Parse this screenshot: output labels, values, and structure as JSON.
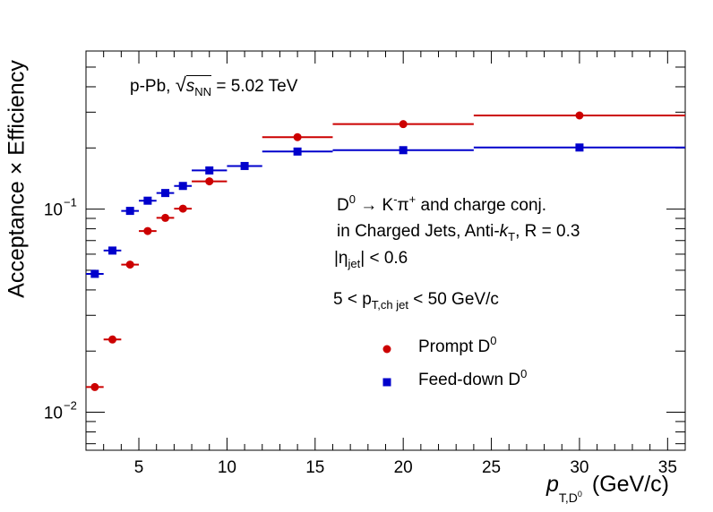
{
  "chart_data": {
    "type": "scatter",
    "title": "",
    "xlabel": "p",
    "xlabel_sub": "T,D",
    "xlabel_subsup": "0",
    "xlabel_unit": "(GeV/c)",
    "ylabel": "Acceptance × Efficiency",
    "xlim": [
      2,
      36
    ],
    "ylim": [
      0.0065,
      0.6
    ],
    "yscale": "log",
    "grid": false,
    "legend_position": "center-right",
    "x_ticks": [
      5,
      10,
      15,
      20,
      25,
      30,
      35
    ],
    "x_tick_labels": [
      "5",
      "10",
      "15",
      "20",
      "25",
      "30",
      "35"
    ],
    "y_ticks": [
      0.01,
      0.1
    ],
    "y_tick_labels": [
      {
        "base": "10",
        "exp": "−2"
      },
      {
        "base": "10",
        "exp": "−1"
      }
    ],
    "series": [
      {
        "name": "Prompt D",
        "name_sup": "0",
        "color": "#cc0000",
        "marker": "circle",
        "points": [
          {
            "x": 2.5,
            "xlow": 2,
            "xhigh": 3,
            "y": 0.0133
          },
          {
            "x": 3.5,
            "xlow": 3,
            "xhigh": 4,
            "y": 0.0228
          },
          {
            "x": 4.5,
            "xlow": 4,
            "xhigh": 5,
            "y": 0.0533
          },
          {
            "x": 5.5,
            "xlow": 5,
            "xhigh": 6,
            "y": 0.078
          },
          {
            "x": 6.5,
            "xlow": 6,
            "xhigh": 7,
            "y": 0.0905
          },
          {
            "x": 7.5,
            "xlow": 7,
            "xhigh": 8,
            "y": 0.1005
          },
          {
            "x": 9,
            "xlow": 8,
            "xhigh": 10,
            "y": 0.137
          },
          {
            "x": 14,
            "xlow": 12,
            "xhigh": 16,
            "y": 0.226
          },
          {
            "x": 20,
            "xlow": 16,
            "xhigh": 24,
            "y": 0.262
          },
          {
            "x": 30,
            "xlow": 24,
            "xhigh": 36,
            "y": 0.289
          }
        ]
      },
      {
        "name": "Feed-down D",
        "name_sup": "0",
        "color": "#0000cc",
        "marker": "square",
        "points": [
          {
            "x": 2.5,
            "xlow": 2,
            "xhigh": 3,
            "y": 0.048
          },
          {
            "x": 3.5,
            "xlow": 3,
            "xhigh": 4,
            "y": 0.0625
          },
          {
            "x": 4.5,
            "xlow": 4,
            "xhigh": 5,
            "y": 0.098
          },
          {
            "x": 5.5,
            "xlow": 5,
            "xhigh": 6,
            "y": 0.11
          },
          {
            "x": 6.5,
            "xlow": 6,
            "xhigh": 7,
            "y": 0.12
          },
          {
            "x": 7.5,
            "xlow": 7,
            "xhigh": 8,
            "y": 0.13
          },
          {
            "x": 9,
            "xlow": 8,
            "xhigh": 10,
            "y": 0.155
          },
          {
            "x": 11,
            "xlow": 10,
            "xhigh": 12,
            "y": 0.163
          },
          {
            "x": 14,
            "xlow": 12,
            "xhigh": 16,
            "y": 0.192
          },
          {
            "x": 20,
            "xlow": 16,
            "xhigh": 24,
            "y": 0.195
          },
          {
            "x": 30,
            "xlow": 24,
            "xhigh": 36,
            "y": 0.201
          }
        ]
      }
    ],
    "annotations": {
      "system": "p-Pb,",
      "sqrt_s": "s",
      "sqrt_s_sub": "NN",
      "energy": "= 5.02 TeV",
      "decay_d": "D",
      "decay_d_sup": "0",
      "decay_arrow": "→ K",
      "decay_k_sup": "-",
      "decay_pi": "π",
      "decay_pi_sup": "+",
      "decay_rest": "and charge conj.",
      "jets_prefix": "in Charged Jets, Anti-",
      "jets_k": "k",
      "jets_k_sub": "T",
      "jets_r": ", R = 0.3",
      "eta_open": "|η",
      "eta_sub": "jet",
      "eta_close": "| < 0.6",
      "pt_prefix": "5 < p",
      "pt_sub": "T,ch jet",
      "pt_suffix": "< 50 GeV/c"
    }
  }
}
